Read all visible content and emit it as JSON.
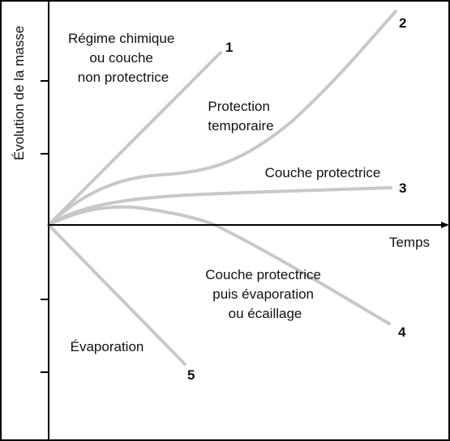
{
  "diagram": {
    "y_axis_label": "Évolution de la masse",
    "x_axis_label": "Temps",
    "curves": [
      {
        "number": "1",
        "label": [
          "Régime chimique",
          "ou couche",
          "non protectrice"
        ]
      },
      {
        "number": "2",
        "label": [
          "Protection",
          "temporaire"
        ]
      },
      {
        "number": "3",
        "label": [
          "Couche protectrice"
        ]
      },
      {
        "number": "4",
        "label": [
          "Couche protectrice",
          "puis évaporation",
          "ou écaillage"
        ]
      },
      {
        "number": "5",
        "label": [
          "Évaporation"
        ]
      }
    ]
  }
}
